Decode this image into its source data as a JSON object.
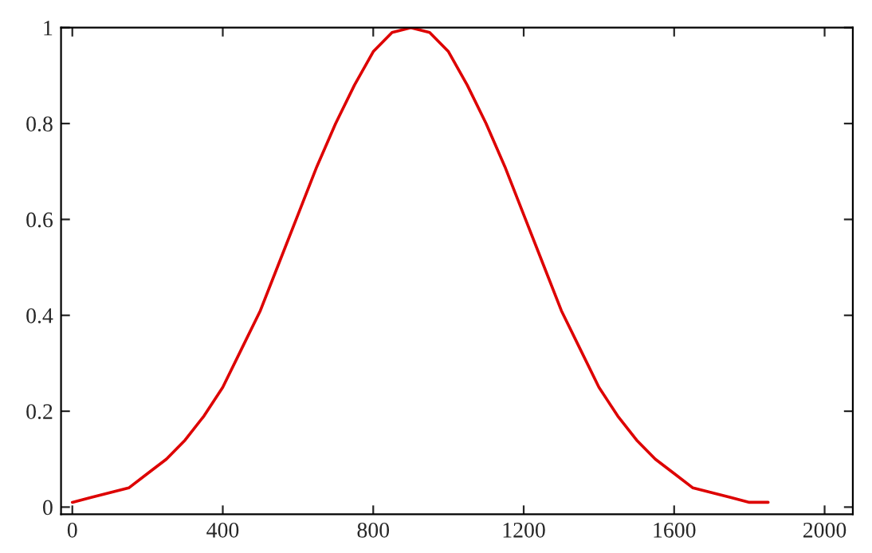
{
  "chart_data": {
    "type": "line",
    "x": [
      0,
      50,
      100,
      150,
      200,
      250,
      300,
      350,
      400,
      450,
      500,
      550,
      600,
      650,
      700,
      750,
      800,
      850,
      900,
      950,
      1000,
      1050,
      1100,
      1150,
      1200,
      1250,
      1300,
      1350,
      1400,
      1450,
      1500,
      1550,
      1600,
      1650,
      1700,
      1750,
      1800,
      1850
    ],
    "series": [
      {
        "color": "#dd0000",
        "values": [
          0.01,
          0.02,
          0.03,
          0.04,
          0.07,
          0.1,
          0.14,
          0.19,
          0.25,
          0.33,
          0.41,
          0.51,
          0.61,
          0.71,
          0.8,
          0.88,
          0.95,
          0.99,
          1,
          0.99,
          0.95,
          0.88,
          0.8,
          0.71,
          0.61,
          0.51,
          0.41,
          0.33,
          0.25,
          0.19,
          0.14,
          0.1,
          0.07,
          0.04,
          0.03,
          0.02,
          0.01,
          0.01
        ]
      }
    ],
    "xlim": [
      -30,
      2075
    ],
    "ylim": [
      -0.015,
      1
    ],
    "xticks": [
      0,
      400,
      800,
      1200,
      1600,
      2000
    ],
    "yticks": [
      0,
      0.2,
      0.4,
      0.6,
      0.8,
      1
    ],
    "grid": false,
    "legend": false
  }
}
